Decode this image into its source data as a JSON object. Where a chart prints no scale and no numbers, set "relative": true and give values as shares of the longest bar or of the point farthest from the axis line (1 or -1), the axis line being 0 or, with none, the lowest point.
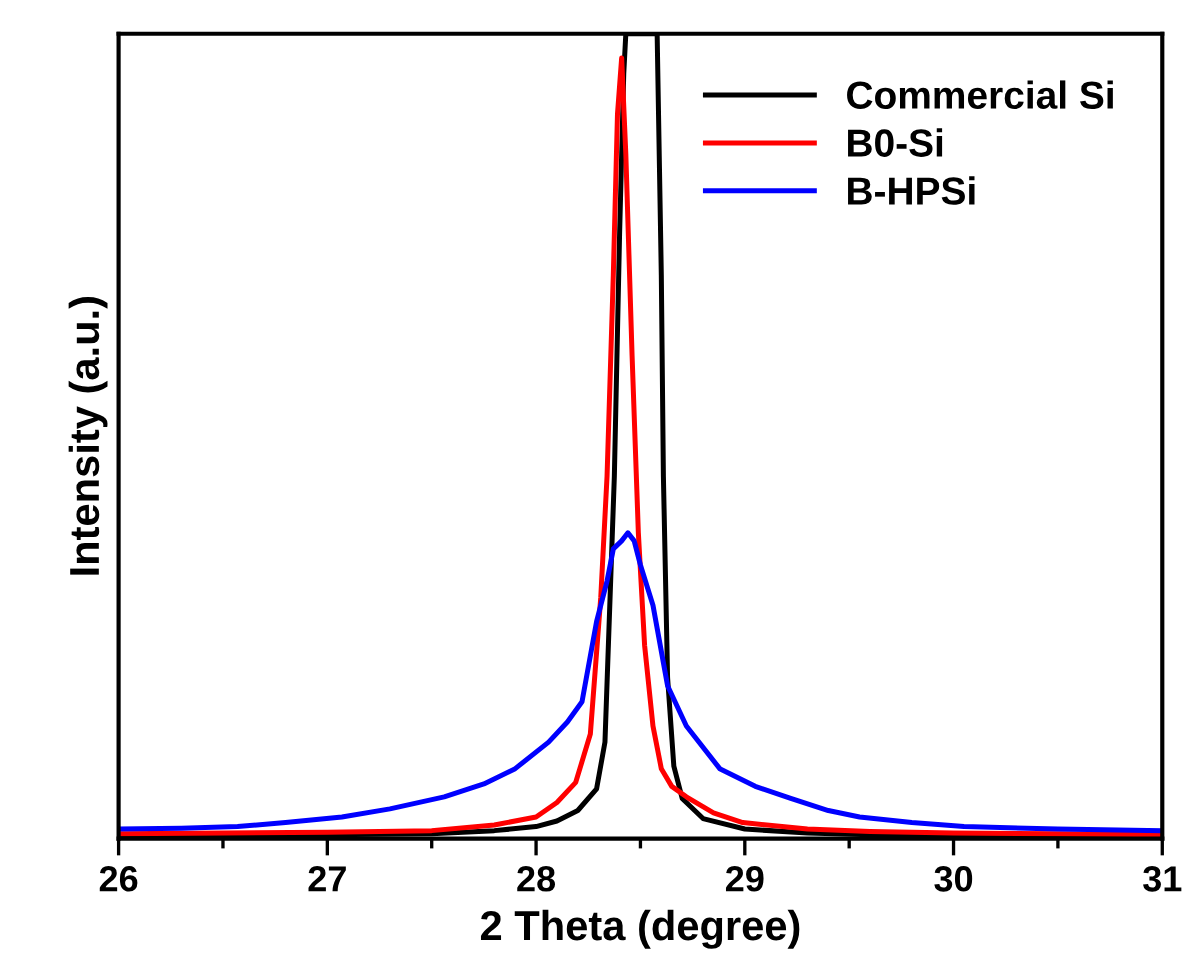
{
  "chart_data": {
    "type": "line",
    "xlabel": "2 Theta (degree)",
    "ylabel": "Intensity (a.u.)",
    "relative": true,
    "xlim": [
      26,
      31
    ],
    "xticks": [
      26,
      27,
      28,
      29,
      30,
      31
    ],
    "legend": "top right",
    "grid": false,
    "marker": "none",
    "line_style": "solid",
    "series": [
      {
        "name": "Commercial Si",
        "color": "#000000",
        "x": [
          26,
          26.5,
          27,
          27.5,
          27.8,
          28.0,
          28.1,
          28.2,
          28.29,
          28.33,
          28.375,
          28.4,
          28.42,
          28.43,
          28.58,
          28.6,
          28.61,
          28.63,
          28.66,
          28.7,
          28.8,
          29.0,
          29.3,
          29.6,
          30,
          30.5,
          31
        ],
        "values": [
          0.004,
          0.004,
          0.005,
          0.006,
          0.01,
          0.015,
          0.022,
          0.035,
          0.062,
          0.12,
          0.45,
          0.75,
          0.95,
          1.0,
          1.0,
          0.7,
          0.45,
          0.2,
          0.09,
          0.05,
          0.025,
          0.012,
          0.007,
          0.005,
          0.004,
          0.004,
          0.003
        ]
      },
      {
        "name": "B0-Si",
        "color": "#ff0000",
        "x": [
          26,
          26.5,
          27,
          27.5,
          27.8,
          28.0,
          28.1,
          28.19,
          28.26,
          28.31,
          28.34,
          28.37,
          28.39,
          28.41,
          28.43,
          28.46,
          28.49,
          28.52,
          28.56,
          28.6,
          28.65,
          28.72,
          28.85,
          28.99,
          29.3,
          29.6,
          30,
          30.5,
          31
        ],
        "values": [
          0.006,
          0.007,
          0.008,
          0.01,
          0.017,
          0.027,
          0.045,
          0.07,
          0.13,
          0.3,
          0.45,
          0.7,
          0.9,
          0.97,
          0.85,
          0.6,
          0.38,
          0.24,
          0.14,
          0.087,
          0.065,
          0.052,
          0.032,
          0.02,
          0.012,
          0.009,
          0.007,
          0.006,
          0.005
        ]
      },
      {
        "name": "B-HPSi",
        "color": "#0000ff",
        "x": [
          26,
          26.3,
          26.57,
          26.8,
          27.07,
          27.3,
          27.56,
          27.75,
          27.9,
          28.06,
          28.15,
          28.22,
          28.29,
          28.34,
          28.37,
          28.41,
          28.44,
          28.47,
          28.5,
          28.56,
          28.63,
          28.72,
          28.88,
          29.05,
          29.22,
          29.4,
          29.55,
          29.8,
          30.05,
          30.5,
          31
        ],
        "values": [
          0.012,
          0.013,
          0.015,
          0.02,
          0.027,
          0.037,
          0.052,
          0.068,
          0.087,
          0.12,
          0.145,
          0.17,
          0.27,
          0.32,
          0.36,
          0.37,
          0.38,
          0.37,
          0.34,
          0.29,
          0.19,
          0.14,
          0.087,
          0.065,
          0.05,
          0.035,
          0.027,
          0.02,
          0.015,
          0.012,
          0.01
        ]
      }
    ]
  }
}
